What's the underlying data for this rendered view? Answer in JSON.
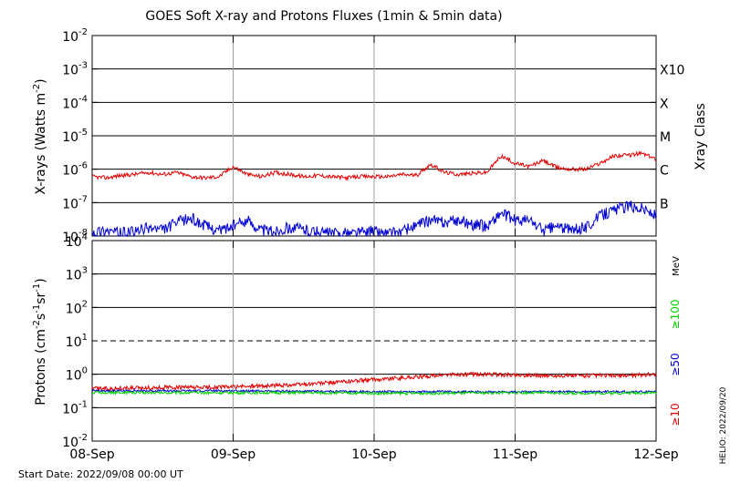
{
  "header": {
    "title": "GOES Soft X-ray and Protons Fluxes   (1min & 5min data)"
  },
  "footer": {
    "start_date": "Start Date: 2022/09/08 00:00 UT",
    "stamp": "HELIO: 2022/09/20"
  },
  "colors": {
    "red": "#e00000",
    "blue": "#0000d0",
    "green": "#00d000",
    "grid": "#000000",
    "vgrid": "#a0a0a0"
  },
  "chart_data": [
    {
      "type": "line",
      "panel": "xray",
      "ylabel_main": "X-rays (Watts m",
      "ylabel_sup": "-2",
      "ylabel_end": ")",
      "yscale": "log",
      "ylim": [
        1e-08,
        0.01
      ],
      "y_ticks": [
        {
          "base": "10",
          "exp": "-2"
        },
        {
          "base": "10",
          "exp": "-3"
        },
        {
          "base": "10",
          "exp": "-4"
        },
        {
          "base": "10",
          "exp": "-5"
        },
        {
          "base": "10",
          "exp": "-6"
        },
        {
          "base": "10",
          "exp": "-7"
        },
        {
          "base": "10",
          "exp": "-8"
        }
      ],
      "right_axis_label": "Xray Class",
      "class_labels": [
        "X10",
        "X",
        "M",
        "C",
        "B"
      ],
      "x_ticks": [
        "08-Sep",
        "09-Sep",
        "10-Sep",
        "11-Sep",
        "12-Sep"
      ],
      "xlim_days": [
        0,
        4
      ],
      "series": [
        {
          "color": "red",
          "x": [
            0,
            0.1,
            0.2,
            0.3,
            0.4,
            0.5,
            0.6,
            0.7,
            0.8,
            0.9,
            1.0,
            1.1,
            1.2,
            1.3,
            1.4,
            1.5,
            1.6,
            1.7,
            1.8,
            1.9,
            2.0,
            2.1,
            2.2,
            2.3,
            2.4,
            2.5,
            2.6,
            2.7,
            2.8,
            2.9,
            3.0,
            3.1,
            3.2,
            3.3,
            3.4,
            3.5,
            3.6,
            3.7,
            3.8,
            3.9,
            4.0
          ],
          "y": [
            6e-07,
            5.5e-07,
            6.5e-07,
            7e-07,
            8e-07,
            7e-07,
            8e-07,
            6e-07,
            5.5e-07,
            6e-07,
            1.2e-06,
            7e-07,
            6e-07,
            8e-07,
            7e-07,
            6e-07,
            6.5e-07,
            6e-07,
            5.5e-07,
            6e-07,
            6e-07,
            6e-07,
            7e-07,
            6.5e-07,
            1.4e-06,
            8e-07,
            7e-07,
            7.5e-07,
            8e-07,
            2.5e-06,
            1.5e-06,
            1.2e-06,
            1.8e-06,
            1.1e-06,
            1e-06,
            1e-06,
            1.5e-06,
            2.5e-06,
            2.6e-06,
            3e-06,
            2e-06
          ]
        },
        {
          "color": "blue",
          "x": [
            0,
            0.1,
            0.2,
            0.3,
            0.4,
            0.5,
            0.6,
            0.7,
            0.8,
            0.9,
            1.0,
            1.1,
            1.2,
            1.3,
            1.4,
            1.5,
            1.6,
            1.7,
            1.8,
            1.9,
            2.0,
            2.1,
            2.2,
            2.3,
            2.4,
            2.5,
            2.6,
            2.7,
            2.8,
            2.9,
            3.0,
            3.1,
            3.2,
            3.3,
            3.4,
            3.5,
            3.6,
            3.7,
            3.8,
            3.9,
            4.0
          ],
          "y": [
            1.3e-08,
            1.5e-08,
            1.2e-08,
            1.3e-08,
            1.8e-08,
            1.5e-08,
            2.5e-08,
            3.5e-08,
            2e-08,
            1.5e-08,
            2e-08,
            3e-08,
            1.5e-08,
            1.4e-08,
            1.8e-08,
            1.6e-08,
            1.3e-08,
            1.2e-08,
            1.2e-08,
            1.3e-08,
            1.4e-08,
            1.2e-08,
            1.4e-08,
            2e-08,
            3e-08,
            2.5e-08,
            3e-08,
            2.2e-08,
            2e-08,
            5e-08,
            3e-08,
            3e-08,
            1.5e-08,
            2e-08,
            1.5e-08,
            1.8e-08,
            4e-08,
            6e-08,
            8e-08,
            7e-08,
            4e-08
          ]
        }
      ]
    },
    {
      "type": "line",
      "panel": "protons",
      "ylabel_main": "Protons (cm",
      "ylabel_sup1": "-2",
      "ylabel_mid": "s",
      "ylabel_sup2": "-1",
      "ylabel_mid2": "sr",
      "ylabel_sup3": "-1",
      "ylabel_end": ")",
      "yscale": "log",
      "ylim": [
        0.01,
        10000
      ],
      "y_ticks": [
        {
          "base": "10",
          "exp": "4"
        },
        {
          "base": "10",
          "exp": "3"
        },
        {
          "base": "10",
          "exp": "2"
        },
        {
          "base": "10",
          "exp": "1"
        },
        {
          "base": "10",
          "exp": "0"
        },
        {
          "base": "10",
          "exp": "-1"
        },
        {
          "base": "10",
          "exp": "-2"
        }
      ],
      "unit_label": "MeV",
      "threshold_level": 10,
      "x_ticks": [
        "08-Sep",
        "09-Sep",
        "10-Sep",
        "11-Sep",
        "12-Sep"
      ],
      "xlim_days": [
        0,
        4
      ],
      "series": [
        {
          "name": "≥10",
          "color": "red",
          "x": [
            0,
            0.25,
            0.5,
            0.75,
            1.0,
            1.25,
            1.5,
            1.75,
            2.0,
            2.25,
            2.5,
            2.75,
            3.0,
            3.25,
            3.5,
            3.75,
            4.0
          ],
          "y": [
            0.38,
            0.38,
            0.4,
            0.4,
            0.42,
            0.45,
            0.5,
            0.58,
            0.7,
            0.8,
            0.95,
            1.0,
            0.95,
            0.9,
            0.92,
            0.9,
            1.0
          ]
        },
        {
          "name": "≥50",
          "color": "blue",
          "x": [
            0,
            0.5,
            1.0,
            1.5,
            2.0,
            2.5,
            3.0,
            3.5,
            4.0
          ],
          "y": [
            0.32,
            0.32,
            0.32,
            0.31,
            0.3,
            0.3,
            0.3,
            0.3,
            0.3
          ]
        },
        {
          "name": "≥100",
          "color": "green",
          "x": [
            0,
            0.5,
            1.0,
            1.5,
            2.0,
            2.5,
            3.0,
            3.5,
            4.0
          ],
          "y": [
            0.28,
            0.28,
            0.28,
            0.28,
            0.27,
            0.27,
            0.28,
            0.27,
            0.28
          ]
        }
      ]
    }
  ]
}
